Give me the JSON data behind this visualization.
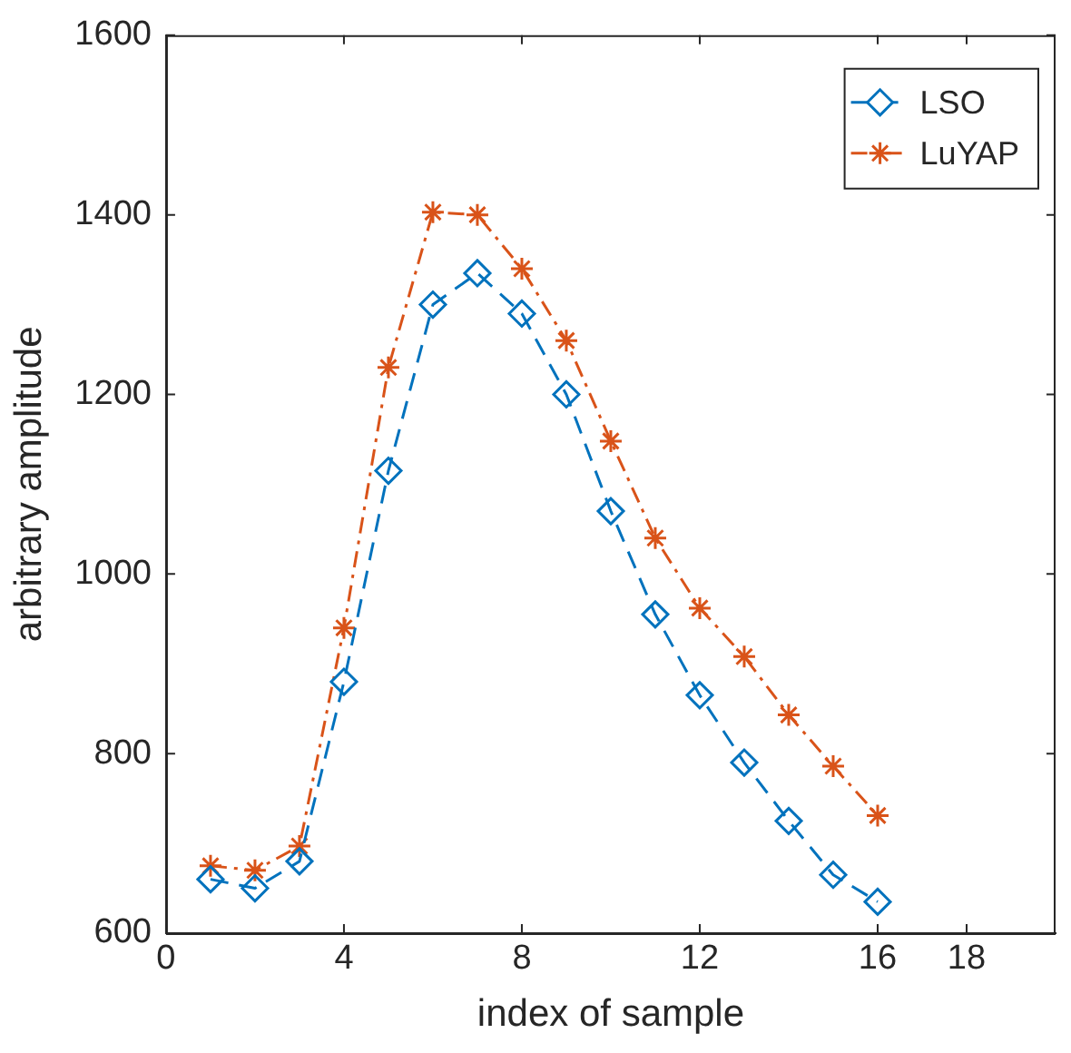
{
  "chart_data": {
    "type": "line",
    "xlabel": "index of sample",
    "ylabel": "arbitrary amplitude",
    "x": [
      1,
      2,
      3,
      4,
      5,
      6,
      7,
      8,
      9,
      10,
      11,
      12,
      13,
      14,
      15,
      16
    ],
    "series": [
      {
        "name": "LSO",
        "color": "#0072bd",
        "marker": "diamond",
        "line_style": "dashed",
        "values": [
          660,
          650,
          680,
          880,
          1115,
          1300,
          1335,
          1290,
          1200,
          1070,
          955,
          865,
          790,
          725,
          665,
          635
        ]
      },
      {
        "name": "LuYAP",
        "color": "#d95319",
        "marker": "cross",
        "line_style": "dashdot",
        "values": [
          675,
          670,
          697,
          940,
          1230,
          1403,
          1400,
          1340,
          1260,
          1148,
          1040,
          962,
          908,
          843,
          786,
          731
        ]
      }
    ],
    "xlim": [
      0,
      20
    ],
    "xticks": [
      0,
      4,
      8,
      12,
      16,
      18
    ],
    "ylim": [
      600,
      1600
    ],
    "yticks": [
      600,
      800,
      1000,
      1200,
      1400,
      1600
    ],
    "grid": false,
    "legend": "top right"
  }
}
